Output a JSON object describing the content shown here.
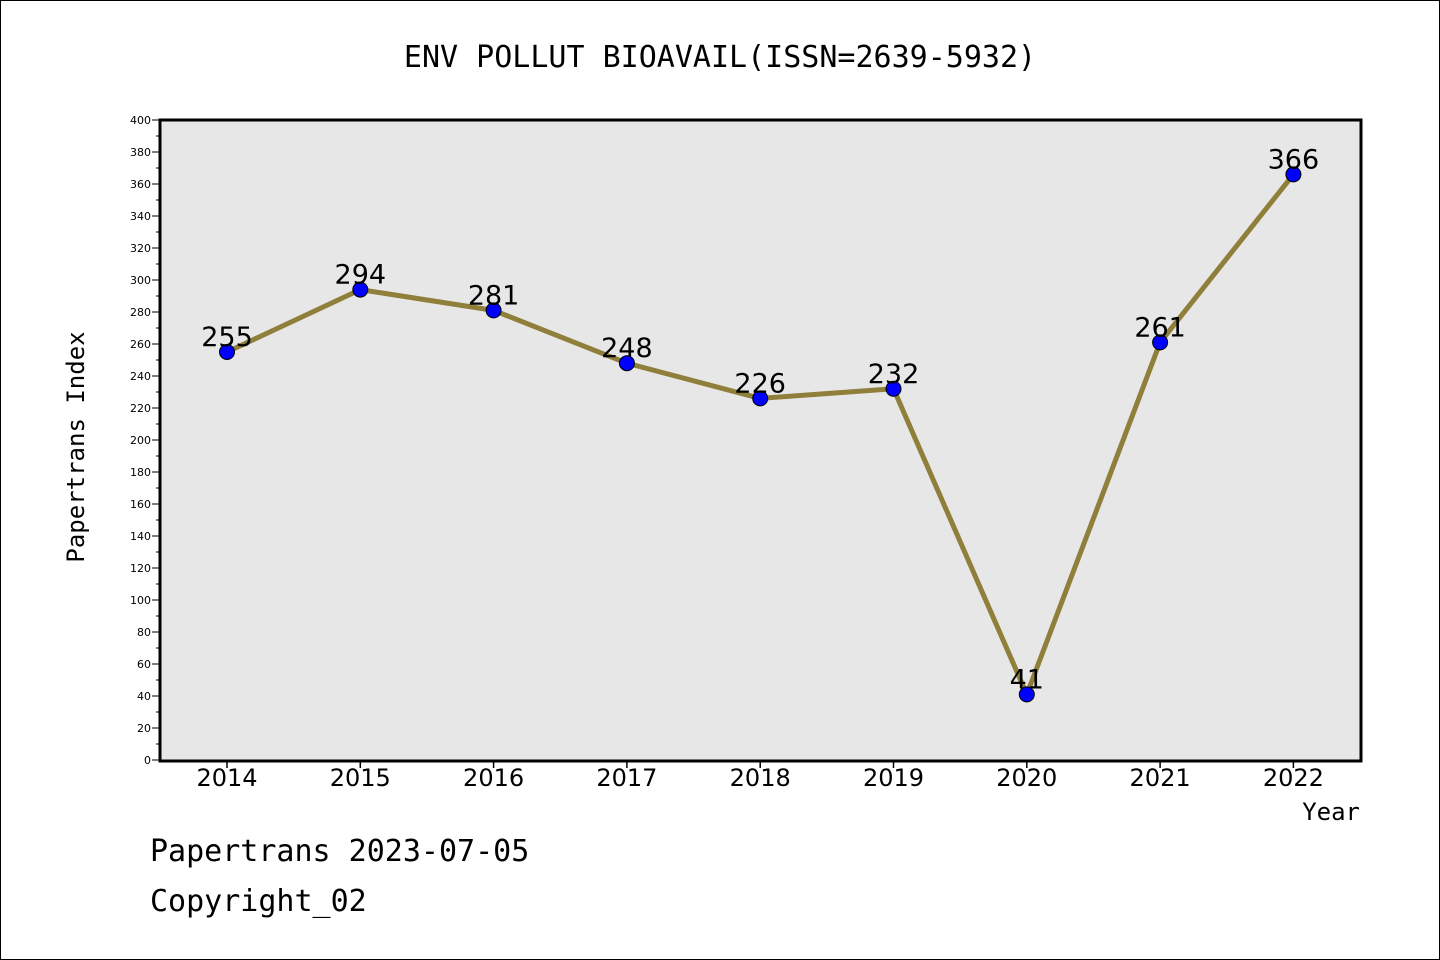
{
  "chart_data": {
    "type": "line",
    "title": "ENV POLLUT BIOAVAIL(ISSN=2639-5932)",
    "xlabel": "Year",
    "ylabel": "Papertrans Index",
    "categories": [
      "2014",
      "2015",
      "2016",
      "2017",
      "2018",
      "2019",
      "2020",
      "2021",
      "2022"
    ],
    "series": [
      {
        "values": [
          255,
          294,
          281,
          248,
          226,
          232,
          41,
          261,
          366
        ],
        "data_labels": [
          "255",
          "294",
          "281",
          "248",
          "226",
          "232",
          "41",
          "261",
          "366"
        ]
      }
    ],
    "ylim": [
      0,
      400
    ],
    "yticks": [
      "0",
      "20",
      "40",
      "60",
      "80",
      "100",
      "120",
      "140",
      "160",
      "180",
      "200",
      "220",
      "240",
      "260",
      "280",
      "300",
      "320",
      "340",
      "360",
      "380",
      "400"
    ],
    "grid": false,
    "line_color": "#8f7f3a",
    "marker_color": "#0000ff",
    "plot_background": "#e7e7e7"
  },
  "footer": {
    "line1": "Papertrans 2023-07-05",
    "line2": "Copyright_02"
  }
}
